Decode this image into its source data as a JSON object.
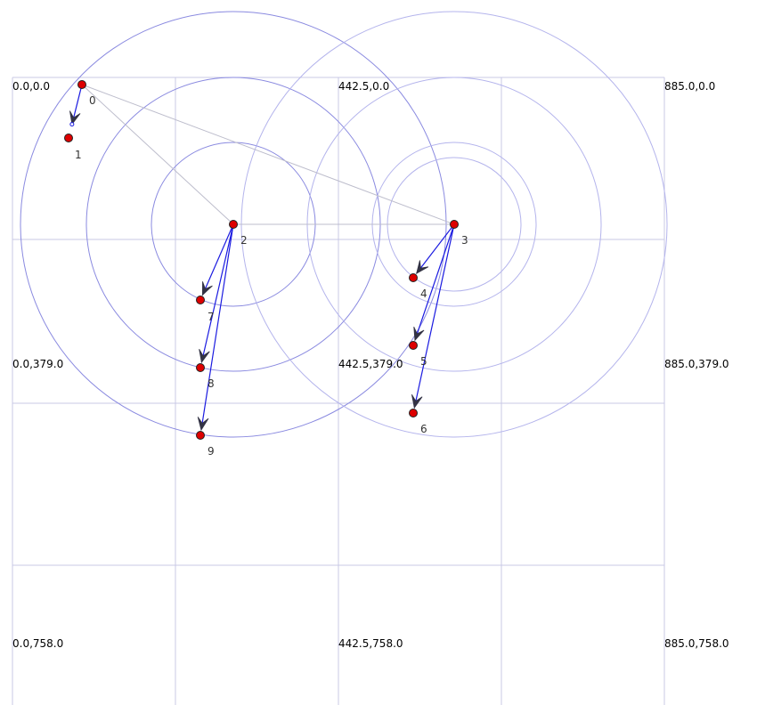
{
  "colors": {
    "background": "#ffffff",
    "grid": "#c8c8e6",
    "ring_a": "#8a8ae0",
    "ring_b": "#b4b4ec",
    "tree_link": "#bdbdcc",
    "arrow": "#1a1ae0",
    "arrow_head": "#333344",
    "node_fill": "#dd0000",
    "node_stroke": "#222222"
  },
  "grid_labels": [
    {
      "id": "r0c0",
      "text": "0.0,0.0"
    },
    {
      "id": "r0c1",
      "text": "442.5,0.0"
    },
    {
      "id": "r0c2",
      "text": "885.0,0.0"
    },
    {
      "id": "r1c0",
      "text": "0.0,379.0"
    },
    {
      "id": "r1c1",
      "text": "442.5,379.0"
    },
    {
      "id": "r1c2",
      "text": "885.0,379.0"
    },
    {
      "id": "r2c0",
      "text": "0.0,758.0"
    },
    {
      "id": "r2c1",
      "text": "442.5,758.0"
    },
    {
      "id": "r2c2",
      "text": "885.0,758.0"
    }
  ],
  "nodes": [
    {
      "id": "0",
      "label": "0"
    },
    {
      "id": "1",
      "label": "1"
    },
    {
      "id": "2",
      "label": "2"
    },
    {
      "id": "3",
      "label": "3"
    },
    {
      "id": "4",
      "label": "4"
    },
    {
      "id": "5",
      "label": "5"
    },
    {
      "id": "6",
      "label": "6"
    },
    {
      "id": "7",
      "label": "7"
    },
    {
      "id": "8",
      "label": "8"
    },
    {
      "id": "9",
      "label": "9"
    }
  ],
  "tree_links": [
    {
      "from": "0",
      "to": "2"
    },
    {
      "from": "0",
      "to": "3"
    },
    {
      "from": "2",
      "to": "3"
    }
  ],
  "arrows": [
    {
      "from": "0",
      "to": "1"
    },
    {
      "from": "2",
      "to": "7"
    },
    {
      "from": "2",
      "to": "8"
    },
    {
      "from": "2",
      "to": "9"
    },
    {
      "from": "3",
      "to": "4"
    },
    {
      "from": "3",
      "to": "5"
    },
    {
      "from": "3",
      "to": "6"
    }
  ],
  "range_circles": [
    {
      "center": "2",
      "rings": 3,
      "color_key": "ring_a"
    },
    {
      "center": "3",
      "rings": 3,
      "color_key": "ring_b"
    }
  ]
}
